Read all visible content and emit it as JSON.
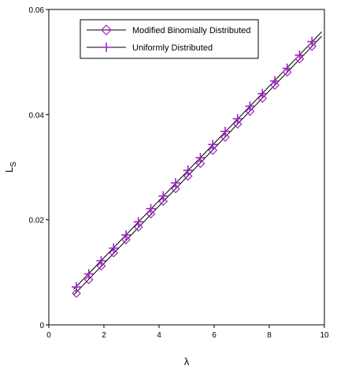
{
  "chart_data": {
    "type": "line",
    "xlabel": "λ",
    "ylabel_main": "L",
    "ylabel_sub": "S",
    "xlim": [
      0,
      10
    ],
    "ylim": [
      0,
      0.06
    ],
    "xticks": [
      0,
      2,
      4,
      6,
      8,
      10
    ],
    "xtick_labels": [
      "0",
      "2",
      "4",
      "6",
      "8",
      "10"
    ],
    "yticks": [
      0,
      0.02,
      0.04,
      0.06
    ],
    "ytick_labels": [
      "0",
      "0.02",
      "0.04",
      "0.06"
    ],
    "legend_position": "top-left",
    "colors": {
      "marker": "#a020c8",
      "line": "#000000"
    },
    "series": [
      {
        "name": "Modified Binomially Distributed",
        "marker": "diamond",
        "x": [
          1,
          1.45,
          1.9,
          2.35,
          2.8,
          3.25,
          3.7,
          4.15,
          4.6,
          5.05,
          5.5,
          5.95,
          6.4,
          6.85,
          7.3,
          7.75,
          8.2,
          8.65,
          9.1,
          9.55
        ],
        "values": [
          0.006,
          0.0086,
          0.0112,
          0.0137,
          0.0162,
          0.0186,
          0.0211,
          0.0235,
          0.0259,
          0.0283,
          0.0307,
          0.0332,
          0.0357,
          0.0382,
          0.0406,
          0.0431,
          0.0456,
          0.0481,
          0.0506,
          0.053
        ]
      },
      {
        "name": "Uniformly Distributed",
        "marker": "plus",
        "x": [
          1,
          1.45,
          1.9,
          2.35,
          2.8,
          3.25,
          3.7,
          4.15,
          4.6,
          5.05,
          5.5,
          5.95,
          6.4,
          6.85,
          7.3,
          7.75,
          8.2,
          8.65,
          9.1,
          9.55
        ],
        "values": [
          0.0072,
          0.0097,
          0.0122,
          0.0146,
          0.0171,
          0.0196,
          0.0221,
          0.0245,
          0.027,
          0.0294,
          0.0318,
          0.0343,
          0.0368,
          0.0392,
          0.0416,
          0.044,
          0.0464,
          0.0488,
          0.0513,
          0.0539
        ]
      }
    ]
  }
}
